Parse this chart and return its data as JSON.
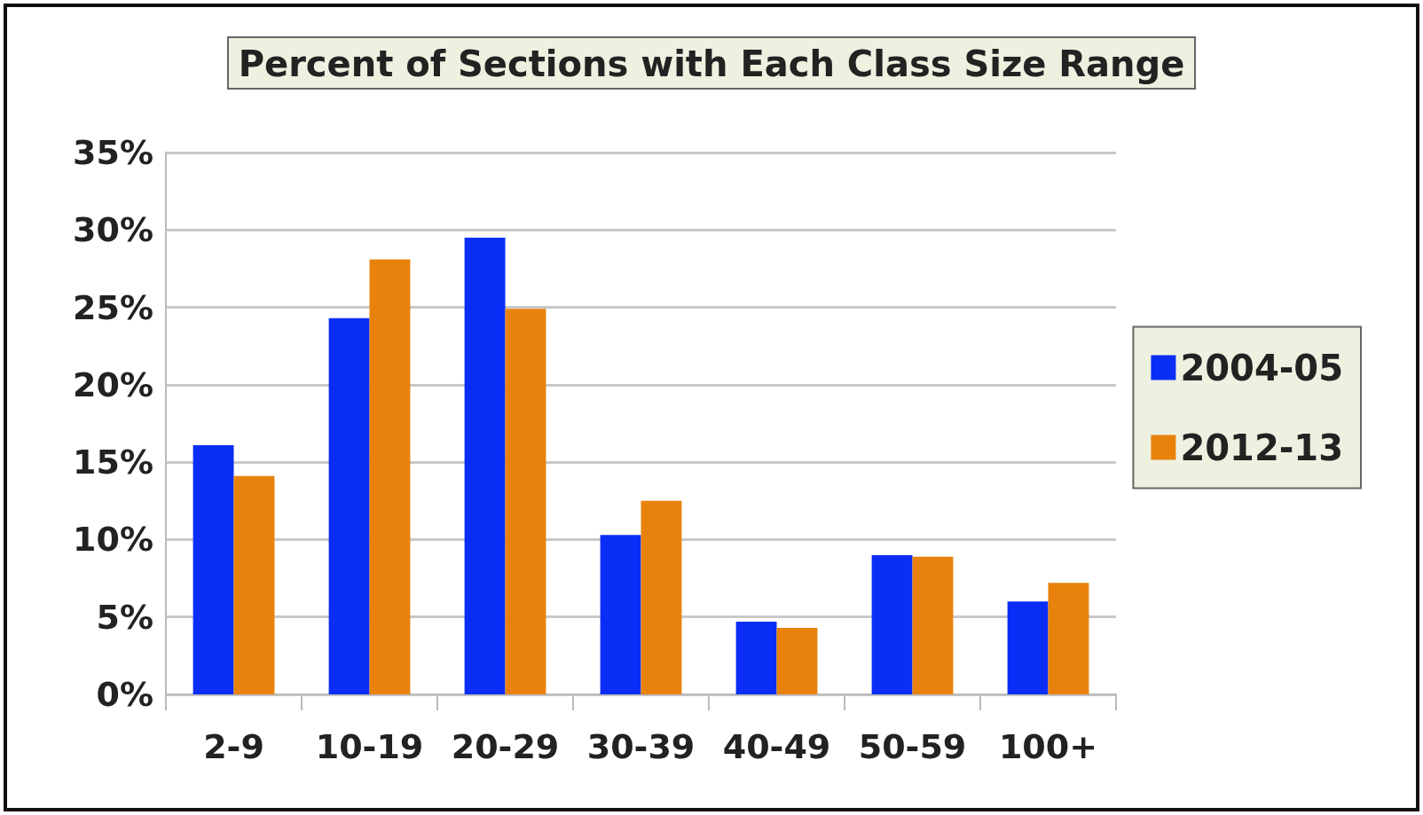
{
  "chart_data": {
    "type": "bar",
    "title": "Percent of Sections with Each Class Size Range",
    "categories": [
      "2-9",
      "10-19",
      "20-29",
      "30-39",
      "40-49",
      "50-59",
      "100+"
    ],
    "series": [
      {
        "name": "2004-05",
        "color": "#0a2ef5",
        "values": [
          16.1,
          24.3,
          29.5,
          10.3,
          4.7,
          9.0,
          6.0
        ]
      },
      {
        "name": "2012-13",
        "color": "#e8820c",
        "values": [
          14.1,
          28.1,
          24.9,
          12.5,
          4.3,
          8.9,
          7.2
        ]
      }
    ],
    "ylim": [
      0,
      35
    ],
    "yticks": [
      {
        "value": 0,
        "label": "0%"
      },
      {
        "value": 5,
        "label": "5%"
      },
      {
        "value": 10,
        "label": "10%"
      },
      {
        "value": 15,
        "label": "15%"
      },
      {
        "value": 20,
        "label": "20%"
      },
      {
        "value": 25,
        "label": "25%"
      },
      {
        "value": 30,
        "label": "30%"
      },
      {
        "value": 35,
        "label": "35%"
      }
    ],
    "grid": "y",
    "legend": "right"
  }
}
